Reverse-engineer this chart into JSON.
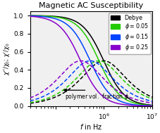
{
  "title": "Magnetic AC Susceptibility",
  "xlabel": "$f$ in Hz",
  "ylabel": "$\\chi^{\\prime\\prime}/\\chi_0$; $\\chi^{\\prime}/\\chi_0$",
  "xlim": [
    30000.0,
    10000000.0
  ],
  "ylim": [
    0.0,
    1.05
  ],
  "f_min": 30000.0,
  "f_max": 10000000.0,
  "n_points": 500,
  "series": [
    {
      "label": "Debye",
      "color": "#000000",
      "tau_factor": 1.0
    },
    {
      "label": "$\\phi = 0.05$",
      "color": "#22cc00",
      "tau_factor": 1.25
    },
    {
      "label": "$\\phi = 0.15$",
      "color": "#0044ff",
      "tau_factor": 1.9
    },
    {
      "label": "$\\phi = 0.25$",
      "color": "#8800cc",
      "tau_factor": 3.0
    }
  ],
  "tau0": 1.6e-07,
  "arrow_text": "polymer vol.  fraction $\\phi$",
  "legend_loc": "upper right",
  "background_color": "#f0f0f0",
  "linewidth": 1.1,
  "dash_pattern": [
    3.5,
    1.8
  ]
}
